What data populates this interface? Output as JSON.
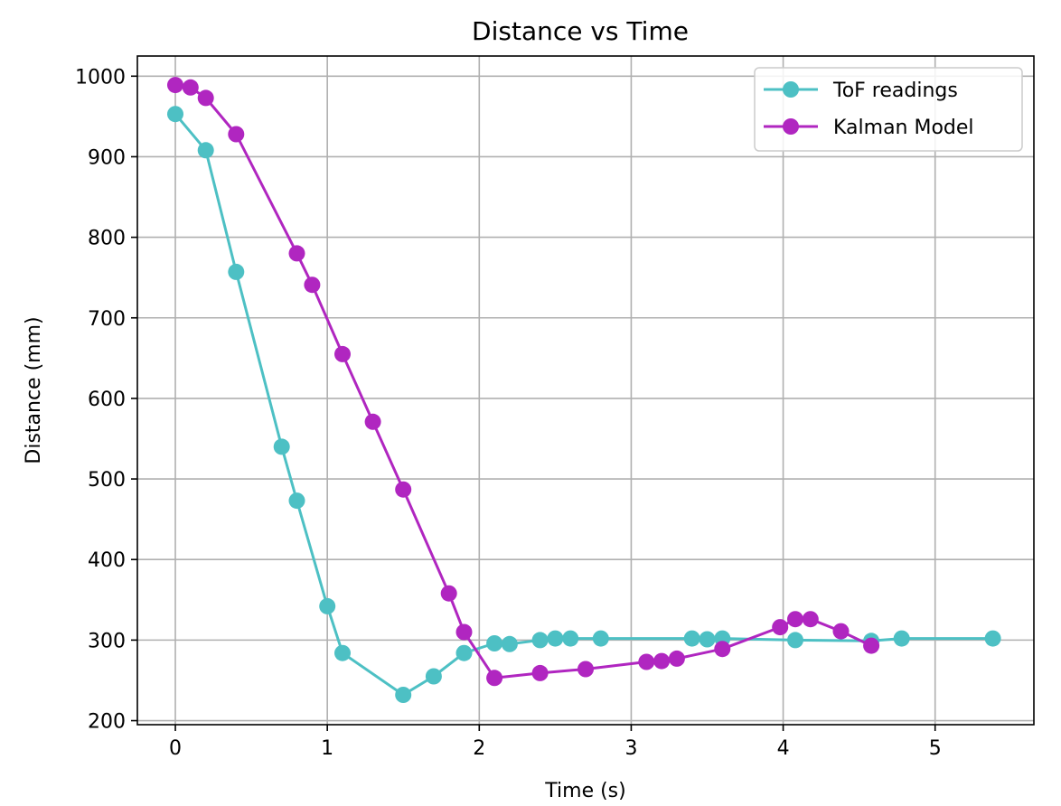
{
  "chart_data": {
    "type": "line",
    "title": "Distance vs Time",
    "xlabel": "Time (s)",
    "ylabel": "Distance (mm)",
    "xlim": [
      -0.25,
      5.65
    ],
    "ylim": [
      195,
      1025
    ],
    "xticks": [
      0,
      1,
      2,
      3,
      4,
      5
    ],
    "yticks": [
      200,
      300,
      400,
      500,
      600,
      700,
      800,
      900,
      1000
    ],
    "grid": true,
    "legend_position": "top-right",
    "series": [
      {
        "name": "ToF readings",
        "color": "#4dc0c4",
        "marker": "circle",
        "x": [
          0.0,
          0.2,
          0.4,
          0.7,
          0.8,
          1.0,
          1.1,
          1.5,
          1.7,
          1.9,
          2.1,
          2.2,
          2.4,
          2.5,
          2.6,
          2.8,
          3.4,
          3.5,
          3.6,
          4.08,
          4.58,
          4.78,
          5.38
        ],
        "y": [
          953,
          908,
          757,
          540,
          473,
          342,
          284,
          232,
          255,
          284,
          296,
          295,
          300,
          302,
          302,
          302,
          302,
          301,
          302,
          300,
          299,
          302,
          302
        ]
      },
      {
        "name": "Kalman Model",
        "color": "#b026c0",
        "marker": "circle",
        "x": [
          0.0,
          0.1,
          0.2,
          0.4,
          0.8,
          0.9,
          1.1,
          1.3,
          1.5,
          1.8,
          1.9,
          2.1,
          2.4,
          2.7,
          3.1,
          3.2,
          3.3,
          3.6,
          3.98,
          4.08,
          4.18,
          4.38,
          4.58
        ],
        "y": [
          989,
          986,
          973,
          928,
          780,
          741,
          655,
          571,
          487,
          358,
          310,
          253,
          259,
          264,
          273,
          274,
          277,
          289,
          316,
          326,
          326,
          311,
          293
        ]
      }
    ]
  }
}
